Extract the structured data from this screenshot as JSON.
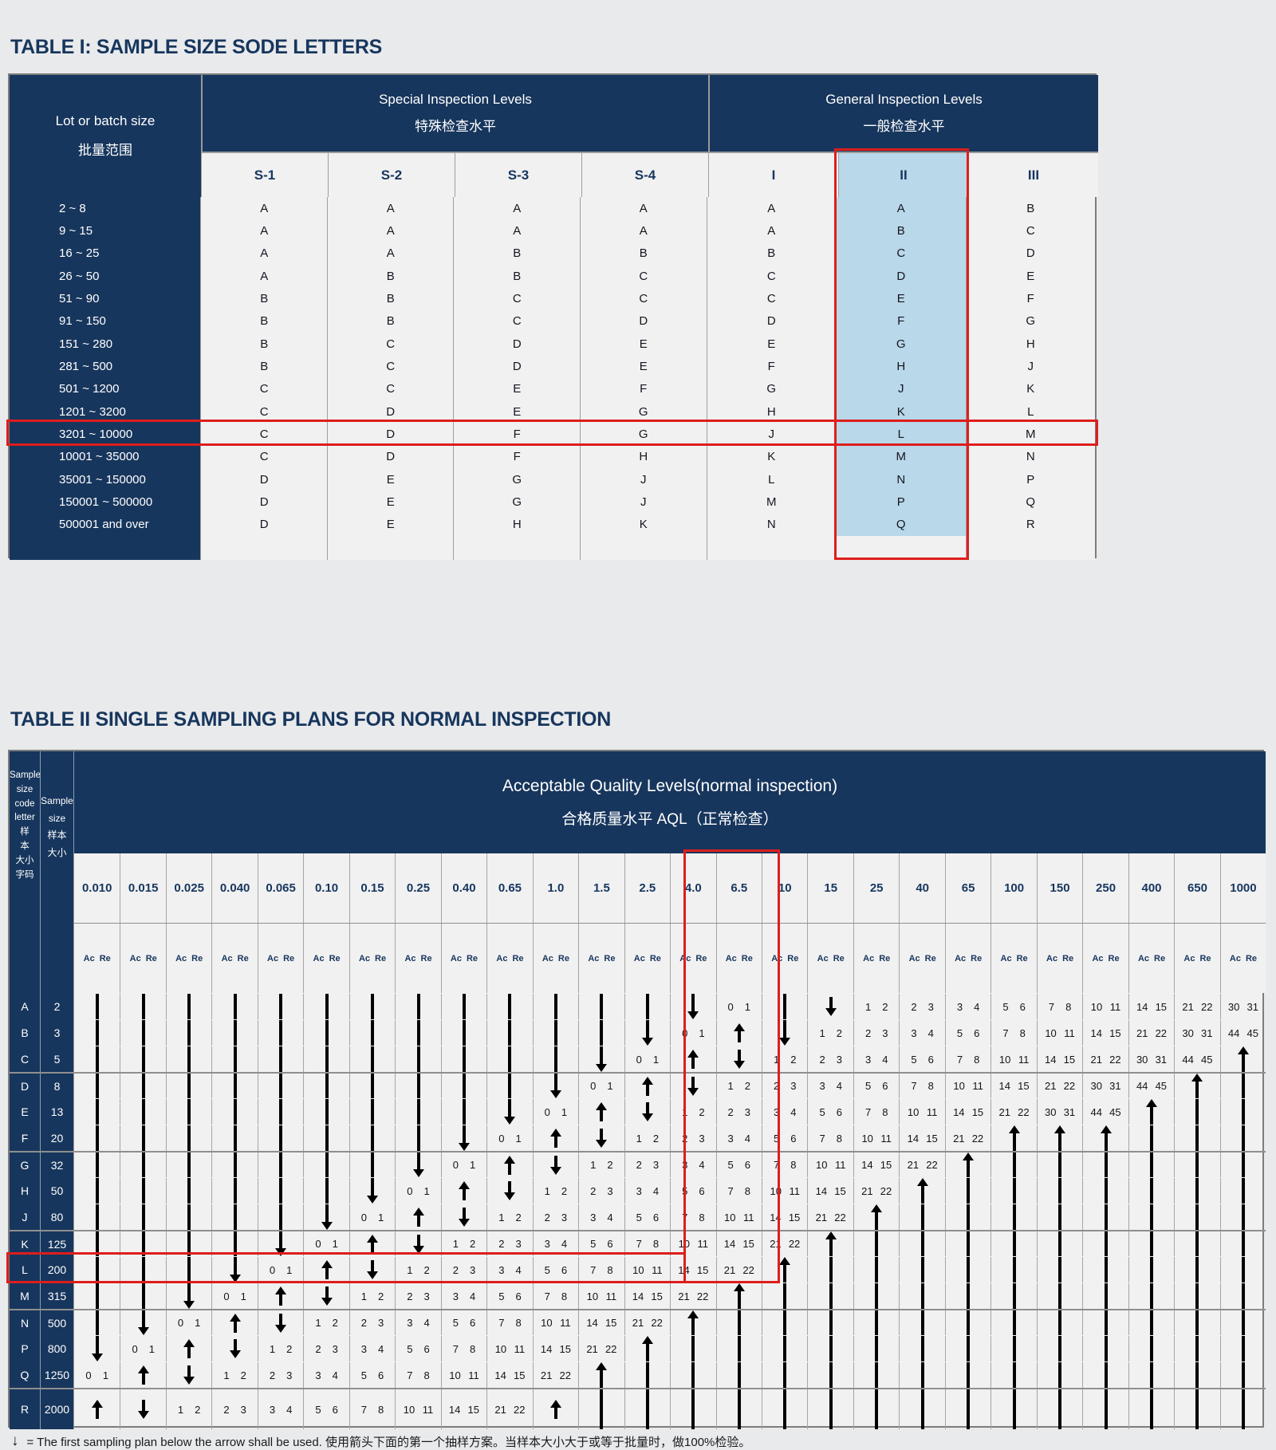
{
  "colors": {
    "page_bg": "#e9eaec",
    "navy": "#17365d",
    "cell_bg": "#f1f1f2",
    "highlight_blue": "#b9d8ea",
    "highlight_red": "#dd1e1c"
  },
  "table1": {
    "title": "TABLE I: SAMPLE SIZE SODE LETTERS",
    "lot_header_en": "Lot or batch size",
    "lot_header_cn": "批量范围",
    "special_en": "Special Inspection Levels",
    "special_cn": "特殊检查水平",
    "general_en": "General Inspection Levels",
    "general_cn": "一般检查水平",
    "special_columns": [
      "S-1",
      "S-2",
      "S-3",
      "S-4"
    ],
    "general_columns": [
      "I",
      "II",
      "III"
    ],
    "highlighted_column": "II",
    "highlighted_row": "3201 ~ 10000",
    "rows": [
      {
        "lot": "2 ~ 8",
        "codes": [
          "A",
          "A",
          "A",
          "A",
          "A",
          "A",
          "B"
        ]
      },
      {
        "lot": "9 ~ 15",
        "codes": [
          "A",
          "A",
          "A",
          "A",
          "A",
          "B",
          "C"
        ]
      },
      {
        "lot": "16 ~ 25",
        "codes": [
          "A",
          "A",
          "B",
          "B",
          "B",
          "C",
          "D"
        ]
      },
      {
        "lot": "26 ~ 50",
        "codes": [
          "A",
          "B",
          "B",
          "C",
          "C",
          "D",
          "E"
        ]
      },
      {
        "lot": "51 ~ 90",
        "codes": [
          "B",
          "B",
          "C",
          "C",
          "C",
          "E",
          "F"
        ]
      },
      {
        "lot": "91 ~ 150",
        "codes": [
          "B",
          "B",
          "C",
          "D",
          "D",
          "F",
          "G"
        ]
      },
      {
        "lot": "151 ~ 280",
        "codes": [
          "B",
          "C",
          "D",
          "E",
          "E",
          "G",
          "H"
        ]
      },
      {
        "lot": "281 ~ 500",
        "codes": [
          "B",
          "C",
          "D",
          "E",
          "F",
          "H",
          "J"
        ]
      },
      {
        "lot": "501 ~ 1200",
        "codes": [
          "C",
          "C",
          "E",
          "F",
          "G",
          "J",
          "K"
        ]
      },
      {
        "lot": "1201 ~ 3200",
        "codes": [
          "C",
          "D",
          "E",
          "G",
          "H",
          "K",
          "L"
        ]
      },
      {
        "lot": "3201 ~ 10000",
        "codes": [
          "C",
          "D",
          "F",
          "G",
          "J",
          "L",
          "M"
        ]
      },
      {
        "lot": "10001 ~ 35000",
        "codes": [
          "C",
          "D",
          "F",
          "H",
          "K",
          "M",
          "N"
        ]
      },
      {
        "lot": "35001 ~ 150000",
        "codes": [
          "D",
          "E",
          "G",
          "J",
          "L",
          "N",
          "P"
        ]
      },
      {
        "lot": "150001 ~ 500000",
        "codes": [
          "D",
          "E",
          "G",
          "J",
          "M",
          "P",
          "Q"
        ]
      },
      {
        "lot": "500001 and over",
        "codes": [
          "D",
          "E",
          "H",
          "K",
          "N",
          "Q",
          "R"
        ]
      }
    ]
  },
  "table2": {
    "title": "TABLE II SINGLE SAMPLING PLANS FOR NORMAL INSPECTION",
    "header_en": "Acceptable Quality Levels(normal inspection)",
    "header_cn": "合格质量水平 AQL（正常检查）",
    "col_code_label": "Sample\nsize\ncode\nletter 样\n本\n大小\n字码",
    "col_size_label": "Sample\nsize\n样本\n大小",
    "acre_label": "Ac Re",
    "aql_columns": [
      "0.010",
      "0.015",
      "0.025",
      "0.040",
      "0.065",
      "0.10",
      "0.15",
      "0.25",
      "0.40",
      "0.65",
      "1.0",
      "1.5",
      "2.5",
      "4.0",
      "6.5",
      "10",
      "15",
      "25",
      "40",
      "65",
      "100",
      "150",
      "250",
      "400",
      "650",
      "1000"
    ],
    "highlighted_aql_columns": [
      "2.5",
      "4.0"
    ],
    "highlighted_row_code": "L",
    "cell_legend": {
      "D": "long-down-arrow-segment",
      "De": "long-down-arrow-arrowhead",
      "d": "down-arrow",
      "u": "up-arrow",
      "Ue": "long-up-arrow-arrowhead",
      "U": "long-up-arrow-segment"
    },
    "group_separators_after": [
      "C",
      "F",
      "J",
      "M",
      "Q"
    ],
    "rows": [
      {
        "code": "A",
        "size": "2",
        "cells": [
          "D",
          "D",
          "D",
          "D",
          "D",
          "D",
          "D",
          "D",
          "D",
          "D",
          "D",
          "D",
          "D",
          "De",
          "0 1",
          "D",
          "d",
          "1 2",
          "2 3",
          "3 4",
          "5 6",
          "7 8",
          "10 11",
          "14 15",
          "21 22",
          "30 31"
        ]
      },
      {
        "code": "B",
        "size": "3",
        "cells": [
          "D",
          "D",
          "D",
          "D",
          "D",
          "D",
          "D",
          "D",
          "D",
          "D",
          "D",
          "D",
          "De",
          "0 1",
          "u",
          "De",
          "1 2",
          "2 3",
          "3 4",
          "5 6",
          "7 8",
          "10 11",
          "14 15",
          "21 22",
          "30 31",
          "44 45"
        ]
      },
      {
        "code": "C",
        "size": "5",
        "cells": [
          "D",
          "D",
          "D",
          "D",
          "D",
          "D",
          "D",
          "D",
          "D",
          "D",
          "D",
          "De",
          "0 1",
          "u",
          "d",
          "1 2",
          "2 3",
          "3 4",
          "5 6",
          "7 8",
          "10 11",
          "14 15",
          "21 22",
          "30 31",
          "44 45",
          "Ue"
        ]
      },
      {
        "code": "D",
        "size": "8",
        "cells": [
          "D",
          "D",
          "D",
          "D",
          "D",
          "D",
          "D",
          "D",
          "D",
          "D",
          "De",
          "0 1",
          "u",
          "d",
          "1 2",
          "2 3",
          "3 4",
          "5 6",
          "7 8",
          "10 11",
          "14 15",
          "21 22",
          "30 31",
          "44 45",
          "Ue",
          "U"
        ]
      },
      {
        "code": "E",
        "size": "13",
        "cells": [
          "D",
          "D",
          "D",
          "D",
          "D",
          "D",
          "D",
          "D",
          "D",
          "De",
          "0 1",
          "u",
          "d",
          "1 2",
          "2 3",
          "3 4",
          "5 6",
          "7 8",
          "10 11",
          "14 15",
          "21 22",
          "30 31",
          "44 45",
          "Ue",
          "U",
          "U"
        ]
      },
      {
        "code": "F",
        "size": "20",
        "cells": [
          "D",
          "D",
          "D",
          "D",
          "D",
          "D",
          "D",
          "D",
          "De",
          "0 1",
          "u",
          "d",
          "1 2",
          "2 3",
          "3 4",
          "5 6",
          "7 8",
          "10 11",
          "14 15",
          "21 22",
          "Ue",
          "Ue",
          "Ue",
          "U",
          "U",
          "U"
        ]
      },
      {
        "code": "G",
        "size": "32",
        "cells": [
          "D",
          "D",
          "D",
          "D",
          "D",
          "D",
          "D",
          "De",
          "0 1",
          "u",
          "d",
          "1 2",
          "2 3",
          "3 4",
          "5 6",
          "7 8",
          "10 11",
          "14 15",
          "21 22",
          "Ue",
          "U",
          "U",
          "U",
          "U",
          "U",
          "U"
        ]
      },
      {
        "code": "H",
        "size": "50",
        "cells": [
          "D",
          "D",
          "D",
          "D",
          "D",
          "D",
          "De",
          "0 1",
          "u",
          "d",
          "1 2",
          "2 3",
          "3 4",
          "5 6",
          "7 8",
          "10 11",
          "14 15",
          "21 22",
          "Ue",
          "U",
          "U",
          "U",
          "U",
          "U",
          "U",
          "U"
        ]
      },
      {
        "code": "J",
        "size": "80",
        "cells": [
          "D",
          "D",
          "D",
          "D",
          "D",
          "De",
          "0 1",
          "u",
          "d",
          "1 2",
          "2 3",
          "3 4",
          "5 6",
          "7 8",
          "10 11",
          "14 15",
          "21 22",
          "Ue",
          "U",
          "U",
          "U",
          "U",
          "U",
          "U",
          "U",
          "U"
        ]
      },
      {
        "code": "K",
        "size": "125",
        "cells": [
          "D",
          "D",
          "D",
          "D",
          "De",
          "0 1",
          "u",
          "d",
          "1 2",
          "2 3",
          "3 4",
          "5 6",
          "7 8",
          "10 11",
          "14 15",
          "21 22",
          "Ue",
          "U",
          "U",
          "U",
          "U",
          "U",
          "U",
          "U",
          "U",
          "U"
        ]
      },
      {
        "code": "L",
        "size": "200",
        "cells": [
          "D",
          "D",
          "D",
          "De",
          "0 1",
          "u",
          "d",
          "1 2",
          "2 3",
          "3 4",
          "5 6",
          "7 8",
          "10 11",
          "14 15",
          "21 22",
          "Ue",
          "U",
          "U",
          "U",
          "U",
          "U",
          "U",
          "U",
          "U",
          "U",
          "U"
        ]
      },
      {
        "code": "M",
        "size": "315",
        "cells": [
          "D",
          "D",
          "De",
          "0 1",
          "u",
          "d",
          "1 2",
          "2 3",
          "3 4",
          "5 6",
          "7 8",
          "10 11",
          "14 15",
          "21 22",
          "Ue",
          "U",
          "U",
          "U",
          "U",
          "U",
          "U",
          "U",
          "U",
          "U",
          "U",
          "U"
        ]
      },
      {
        "code": "N",
        "size": "500",
        "cells": [
          "D",
          "De",
          "0 1",
          "u",
          "d",
          "1 2",
          "2 3",
          "3 4",
          "5 6",
          "7 8",
          "10 11",
          "14 15",
          "21 22",
          "Ue",
          "U",
          "U",
          "U",
          "U",
          "U",
          "U",
          "U",
          "U",
          "U",
          "U",
          "U",
          "U"
        ]
      },
      {
        "code": "P",
        "size": "800",
        "cells": [
          "De",
          "0 1",
          "u",
          "d",
          "1 2",
          "2 3",
          "3 4",
          "5 6",
          "7 8",
          "10 11",
          "14 15",
          "21 22",
          "Ue",
          "U",
          "U",
          "U",
          "U",
          "U",
          "U",
          "U",
          "U",
          "U",
          "U",
          "U",
          "U",
          "U"
        ]
      },
      {
        "code": "Q",
        "size": "1250",
        "cells": [
          "0 1",
          "u",
          "d",
          "1 2",
          "2 3",
          "3 4",
          "5 6",
          "7 8",
          "10 11",
          "14 15",
          "21 22",
          "Ue",
          "U",
          "U",
          "U",
          "U",
          "U",
          "U",
          "U",
          "U",
          "U",
          "U",
          "U",
          "U",
          "U",
          "U"
        ]
      },
      {
        "code": "R",
        "size": "2000",
        "cells": [
          "u",
          "d",
          "1 2",
          "2 3",
          "3 4",
          "5 6",
          "7 8",
          "10 11",
          "14 15",
          "21 22",
          "u",
          "U",
          "U",
          "U",
          "U",
          "U",
          "U",
          "U",
          "U",
          "U",
          "U",
          "U",
          "U",
          "U",
          "U",
          "U"
        ]
      }
    ],
    "footnote_marker": "↓",
    "footnote": "= The first sampling plan below the arrow shall be used. 使用箭头下面的第一个抽样方案。当样本大小大于或等于批量时，做100%检验。"
  }
}
